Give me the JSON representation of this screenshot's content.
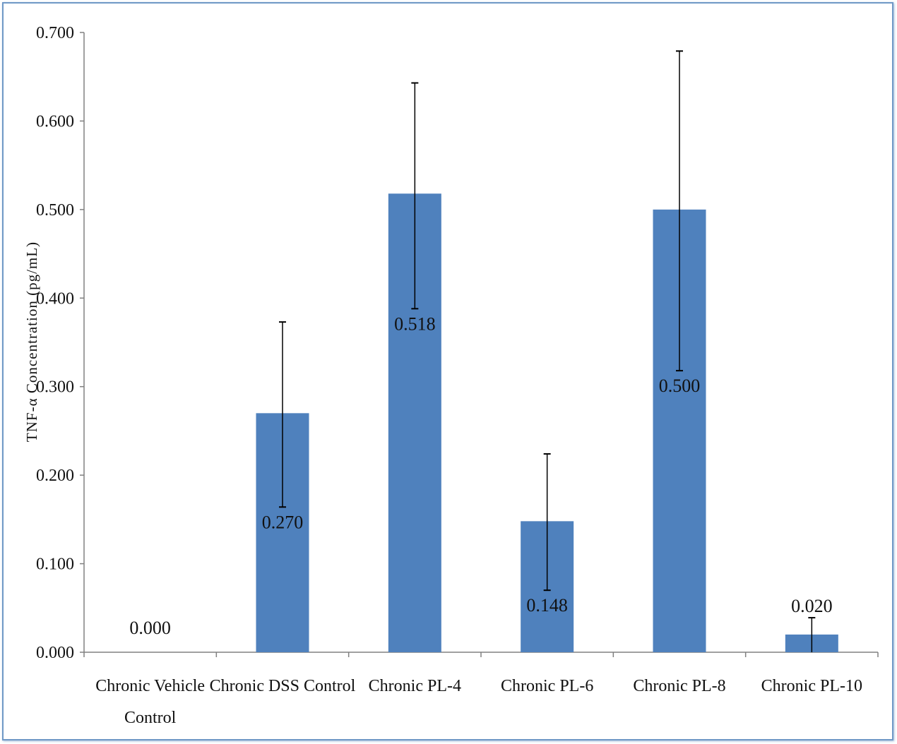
{
  "chart_data": {
    "type": "bar",
    "title": "",
    "xlabel": "",
    "ylabel": "TNF-α Concentration (pg/mL)",
    "ylim": [
      0,
      0.7
    ],
    "yticks": [
      "0.000",
      "0.100",
      "0.200",
      "0.300",
      "0.400",
      "0.500",
      "0.600",
      "0.700"
    ],
    "categories": [
      [
        "Chronic Vehicle",
        "Control"
      ],
      [
        "Chronic DSS Control"
      ],
      [
        "Chronic PL-4"
      ],
      [
        "Chronic PL-6"
      ],
      [
        "Chronic PL-8"
      ],
      [
        "Chronic PL-10"
      ]
    ],
    "values": [
      0.0,
      0.27,
      0.518,
      0.148,
      0.5,
      0.02
    ],
    "data_labels": [
      "0.000",
      "0.270",
      "0.518",
      "0.148",
      "0.500",
      "0.020"
    ],
    "error_bars": [
      [
        0.0,
        0.0
      ],
      [
        0.164,
        0.373
      ],
      [
        0.388,
        0.643
      ],
      [
        0.07,
        0.224
      ],
      [
        0.318,
        0.679
      ],
      [
        0.0,
        0.039
      ]
    ],
    "bar_color": "#4f81bd",
    "grid": false,
    "legend": "none"
  }
}
